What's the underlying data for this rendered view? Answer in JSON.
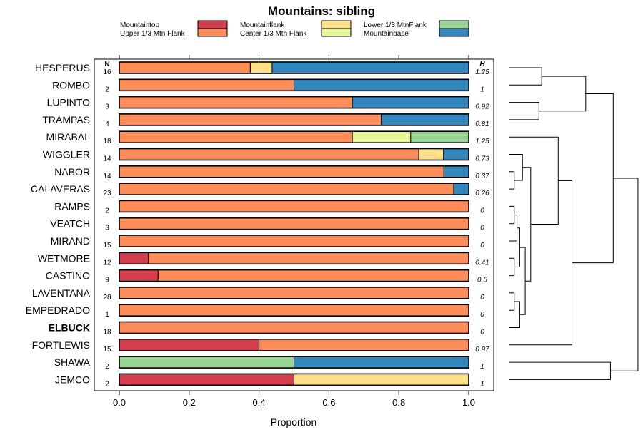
{
  "chart_data": {
    "type": "bar",
    "orientation": "horizontal",
    "stacked": true,
    "normalized": true,
    "title": "Mountains: sibling",
    "xlabel": "Proportion",
    "ylabel": "",
    "xlim": [
      0,
      1
    ],
    "xticks": [
      0,
      0.2,
      0.4,
      0.6,
      0.8,
      1
    ],
    "xtick_labels": [
      "0.0",
      "0.2",
      "0.4",
      "0.6",
      "0.8",
      "1.0"
    ],
    "n_header": "N",
    "h_header": "H",
    "legend_placement": "top",
    "legend": [
      {
        "name": "Mountaintop",
        "color": "#d53e4f"
      },
      {
        "name": "Upper 1/3 Mtn Flank",
        "color": "#fc8d59"
      },
      {
        "name": "Mountainflank",
        "color": "#fee08b"
      },
      {
        "name": "Center 1/3 Mtn Flank",
        "color": "#e6f598"
      },
      {
        "name": "Lower 1/3 MtnFlank",
        "color": "#99d594"
      },
      {
        "name": "Mountainbase",
        "color": "#3288bd"
      }
    ],
    "rows": [
      {
        "label": "HESPERUS",
        "n": "16",
        "h": "1.25",
        "bold": false,
        "segments": [
          0,
          0.375,
          0.0625,
          0,
          0,
          0.5625
        ]
      },
      {
        "label": "ROMBO",
        "n": "2",
        "h": "1",
        "bold": false,
        "segments": [
          0,
          0.5,
          0,
          0,
          0,
          0.5
        ]
      },
      {
        "label": "LUPINTO",
        "n": "3",
        "h": "0.92",
        "bold": false,
        "segments": [
          0,
          0.667,
          0,
          0,
          0,
          0.333
        ]
      },
      {
        "label": "TRAMPAS",
        "n": "4",
        "h": "0.81",
        "bold": false,
        "segments": [
          0,
          0.75,
          0,
          0,
          0,
          0.25
        ]
      },
      {
        "label": "MIRABAL",
        "n": "18",
        "h": "1.25",
        "bold": false,
        "segments": [
          0,
          0.667,
          0,
          0.167,
          0.167,
          0
        ]
      },
      {
        "label": "WIGGLER",
        "n": "14",
        "h": "0.73",
        "bold": false,
        "segments": [
          0,
          0.857,
          0.071,
          0,
          0,
          0.071
        ]
      },
      {
        "label": "NABOR",
        "n": "14",
        "h": "0.37",
        "bold": false,
        "segments": [
          0,
          0.929,
          0,
          0,
          0,
          0.071
        ]
      },
      {
        "label": "CALAVERAS",
        "n": "23",
        "h": "0.26",
        "bold": false,
        "segments": [
          0,
          0.957,
          0,
          0,
          0,
          0.043
        ]
      },
      {
        "label": "RAMPS",
        "n": "2",
        "h": "0",
        "bold": false,
        "segments": [
          0,
          1,
          0,
          0,
          0,
          0
        ]
      },
      {
        "label": "VEATCH",
        "n": "3",
        "h": "0",
        "bold": false,
        "segments": [
          0,
          1,
          0,
          0,
          0,
          0
        ]
      },
      {
        "label": "MIRAND",
        "n": "15",
        "h": "0",
        "bold": false,
        "segments": [
          0,
          1,
          0,
          0,
          0,
          0
        ]
      },
      {
        "label": "WETMORE",
        "n": "12",
        "h": "0.41",
        "bold": false,
        "segments": [
          0.083,
          0.917,
          0,
          0,
          0,
          0
        ]
      },
      {
        "label": "CASTINO",
        "n": "9",
        "h": "0.5",
        "bold": false,
        "segments": [
          0.111,
          0.889,
          0,
          0,
          0,
          0
        ]
      },
      {
        "label": "LAVENTANA",
        "n": "28",
        "h": "0",
        "bold": false,
        "segments": [
          0,
          1,
          0,
          0,
          0,
          0
        ]
      },
      {
        "label": "EMPEDRADO",
        "n": "1",
        "h": "0",
        "bold": false,
        "segments": [
          0,
          1,
          0,
          0,
          0,
          0
        ]
      },
      {
        "label": "ELBUCK",
        "n": "18",
        "h": "0",
        "bold": true,
        "segments": [
          0,
          1,
          0,
          0,
          0,
          0
        ]
      },
      {
        "label": "FORTLEWIS",
        "n": "15",
        "h": "0.97",
        "bold": false,
        "segments": [
          0.4,
          0.6,
          0,
          0,
          0,
          0
        ]
      },
      {
        "label": "SHAWA",
        "n": "2",
        "h": "1",
        "bold": false,
        "segments": [
          0,
          0,
          0,
          0,
          0.5,
          0.5
        ]
      },
      {
        "label": "JEMCO",
        "n": "2",
        "h": "1",
        "bold": false,
        "segments": [
          0.5,
          0,
          0.5,
          0,
          0,
          0
        ]
      }
    ],
    "dendrogram": {
      "description": "hierarchical clustering tree joining the rows; leaves are row indices, heights are merge distances (unitless, larger = later merge)",
      "merges": [
        {
          "id": "a",
          "children": [
            "r0",
            "r1"
          ],
          "height": 0.06
        },
        {
          "id": "b",
          "children": [
            "r2",
            "r3"
          ],
          "height": 0.055
        },
        {
          "id": "c",
          "children": [
            "a",
            "b"
          ],
          "height": 0.14
        },
        {
          "id": "d",
          "children": [
            "r6",
            "r7"
          ],
          "height": 0.01
        },
        {
          "id": "e",
          "children": [
            "r5",
            "d"
          ],
          "height": 0.025
        },
        {
          "id": "f",
          "children": [
            "r8",
            "r9"
          ],
          "height": 0.01
        },
        {
          "id": "g",
          "children": [
            "f",
            "r10"
          ],
          "height": 0.015
        },
        {
          "id": "h",
          "children": [
            "r11",
            "r12"
          ],
          "height": 0.01
        },
        {
          "id": "i",
          "children": [
            "g",
            "h"
          ],
          "height": 0.02
        },
        {
          "id": "j",
          "children": [
            "r13",
            "r14"
          ],
          "height": 0.01
        },
        {
          "id": "k",
          "children": [
            "j",
            "r15"
          ],
          "height": 0.02
        },
        {
          "id": "l",
          "children": [
            "i",
            "k"
          ],
          "height": 0.03
        },
        {
          "id": "m",
          "children": [
            "e",
            "l"
          ],
          "height": 0.04
        },
        {
          "id": "n",
          "children": [
            "r4",
            "m"
          ],
          "height": 0.09
        },
        {
          "id": "o",
          "children": [
            "n",
            "r16"
          ],
          "height": 0.115
        },
        {
          "id": "p",
          "children": [
            "c",
            "o"
          ],
          "height": 0.19
        },
        {
          "id": "q",
          "children": [
            "r17",
            "r18"
          ],
          "height": 0.185
        },
        {
          "id": "root",
          "children": [
            "p",
            "q"
          ],
          "height": 0.235
        }
      ]
    }
  }
}
